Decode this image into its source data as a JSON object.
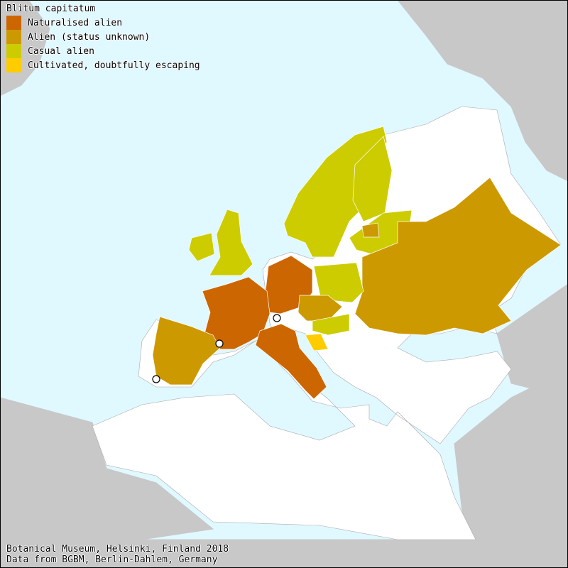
{
  "title": "Blitum capitatum",
  "legend": [
    {
      "label": "Naturalised alien",
      "color": "#cc6600"
    },
    {
      "label": "Alien (status unknown)",
      "color": "#cc9900"
    },
    {
      "label": "Casual alien",
      "color": "#cccc00"
    },
    {
      "label": "Cultivated, doubtfully escaping",
      "color": "#ffcc00"
    }
  ],
  "colors": {
    "sea": "#e0f8ff",
    "land_outside": "#c8c8c8",
    "land_no_record": "#ffffff",
    "marker": "#ffffff"
  },
  "footer": {
    "line1": "Botanical Museum, Helsinki, Finland 2018",
    "line2": "Data from BGBM, Berlin-Dahlem, Germany"
  }
}
